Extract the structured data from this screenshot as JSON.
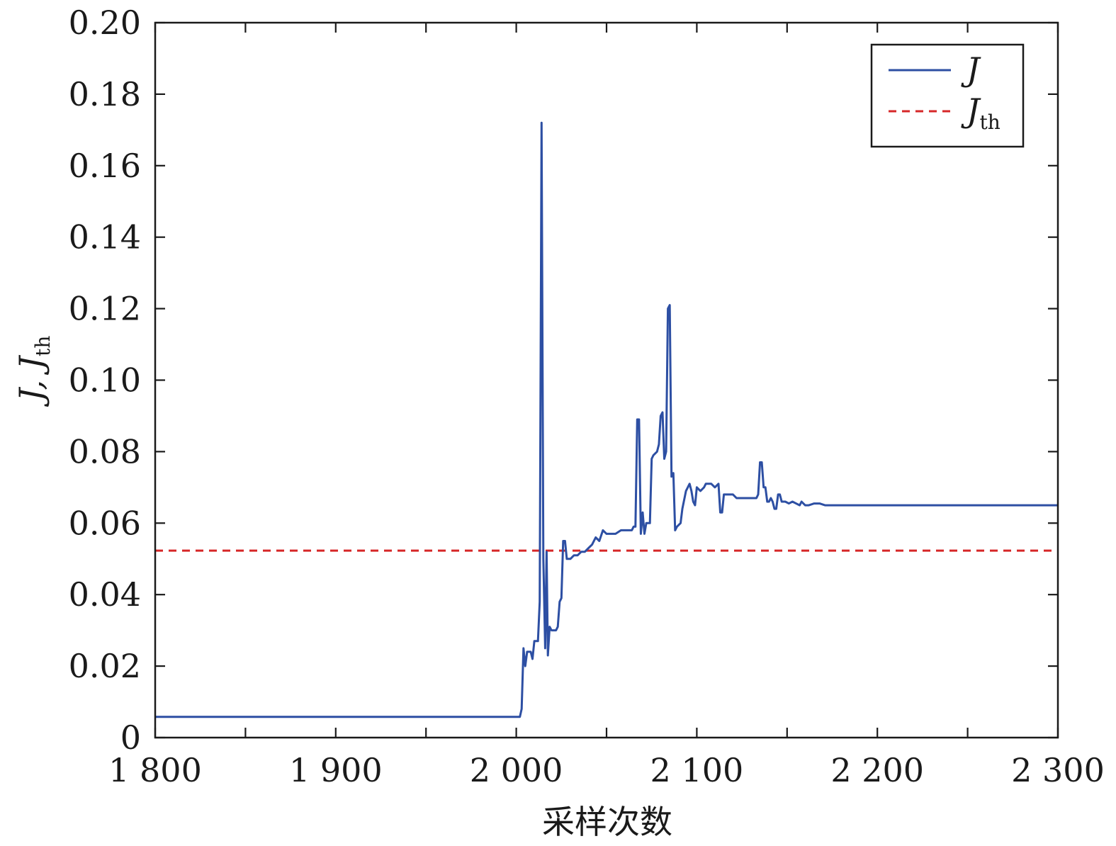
{
  "chart_data": {
    "type": "line",
    "title": "",
    "xlabel": "采样次数",
    "ylabel": {
      "main": "J, J",
      "sub": "th"
    },
    "xlim": [
      1800,
      2300
    ],
    "ylim": [
      0,
      0.2
    ],
    "x_ticks": [
      1800,
      1900,
      2000,
      2100,
      2200,
      2300
    ],
    "x_tick_labels": [
      "1 800",
      "1 900",
      "2 000",
      "2 100",
      "2 200",
      "2 300"
    ],
    "x_minor_ticks": [
      1850,
      1950,
      2050,
      2150,
      2250
    ],
    "y_ticks": [
      0,
      0.02,
      0.04,
      0.06,
      0.08,
      0.1,
      0.12,
      0.14,
      0.16,
      0.18,
      0.2
    ],
    "y_tick_labels": [
      "0",
      "0.02",
      "0.04",
      "0.06",
      "0.08",
      "0.10",
      "0.12",
      "0.14",
      "0.16",
      "0.18",
      "0.20"
    ],
    "grid": false,
    "legend": {
      "position": "top-right"
    },
    "series": [
      {
        "name": "J",
        "sub": "",
        "style": "solid",
        "color": "#2d4fa3",
        "points": [
          [
            1800,
            0.0058
          ],
          [
            2002,
            0.0058
          ],
          [
            2003,
            0.008
          ],
          [
            2004,
            0.025
          ],
          [
            2005,
            0.02
          ],
          [
            2006,
            0.024
          ],
          [
            2008,
            0.024
          ],
          [
            2009,
            0.022
          ],
          [
            2010,
            0.027
          ],
          [
            2012,
            0.027
          ],
          [
            2013,
            0.038
          ],
          [
            2014,
            0.172
          ],
          [
            2015,
            0.05
          ],
          [
            2016,
            0.025
          ],
          [
            2016.8,
            0.052
          ],
          [
            2017.5,
            0.023
          ],
          [
            2018.5,
            0.031
          ],
          [
            2019.5,
            0.03
          ],
          [
            2020.5,
            0.03
          ],
          [
            2022,
            0.03
          ],
          [
            2023,
            0.031
          ],
          [
            2024,
            0.038
          ],
          [
            2025,
            0.039
          ],
          [
            2026,
            0.055
          ],
          [
            2027,
            0.055
          ],
          [
            2028,
            0.05
          ],
          [
            2030,
            0.05
          ],
          [
            2032,
            0.051
          ],
          [
            2034,
            0.051
          ],
          [
            2036,
            0.052
          ],
          [
            2038,
            0.052
          ],
          [
            2040,
            0.053
          ],
          [
            2042,
            0.054
          ],
          [
            2044,
            0.056
          ],
          [
            2046,
            0.055
          ],
          [
            2048,
            0.058
          ],
          [
            2050,
            0.057
          ],
          [
            2055,
            0.057
          ],
          [
            2058,
            0.058
          ],
          [
            2062,
            0.058
          ],
          [
            2064,
            0.058
          ],
          [
            2065,
            0.059
          ],
          [
            2066,
            0.059
          ],
          [
            2067,
            0.089
          ],
          [
            2068,
            0.089
          ],
          [
            2069,
            0.057
          ],
          [
            2070,
            0.063
          ],
          [
            2071,
            0.057
          ],
          [
            2072,
            0.06
          ],
          [
            2074,
            0.06
          ],
          [
            2075,
            0.078
          ],
          [
            2076,
            0.079
          ],
          [
            2078,
            0.08
          ],
          [
            2079,
            0.082
          ],
          [
            2080,
            0.09
          ],
          [
            2081,
            0.091
          ],
          [
            2082,
            0.078
          ],
          [
            2083,
            0.08
          ],
          [
            2084,
            0.12
          ],
          [
            2085,
            0.121
          ],
          [
            2086,
            0.073
          ],
          [
            2087,
            0.074
          ],
          [
            2088,
            0.058
          ],
          [
            2089,
            0.059
          ],
          [
            2091,
            0.06
          ],
          [
            2092,
            0.064
          ],
          [
            2094,
            0.069
          ],
          [
            2095,
            0.07
          ],
          [
            2096,
            0.071
          ],
          [
            2097,
            0.069
          ],
          [
            2098,
            0.066
          ],
          [
            2099,
            0.065
          ],
          [
            2100,
            0.07
          ],
          [
            2102,
            0.069
          ],
          [
            2104,
            0.07
          ],
          [
            2105,
            0.071
          ],
          [
            2108,
            0.071
          ],
          [
            2110,
            0.07
          ],
          [
            2112,
            0.071
          ],
          [
            2113,
            0.063
          ],
          [
            2114,
            0.063
          ],
          [
            2115,
            0.068
          ],
          [
            2118,
            0.068
          ],
          [
            2120,
            0.068
          ],
          [
            2122,
            0.067
          ],
          [
            2125,
            0.067
          ],
          [
            2130,
            0.067
          ],
          [
            2133,
            0.067
          ],
          [
            2134,
            0.068
          ],
          [
            2135,
            0.077
          ],
          [
            2136,
            0.077
          ],
          [
            2137,
            0.07
          ],
          [
            2138,
            0.07
          ],
          [
            2139,
            0.066
          ],
          [
            2140,
            0.066
          ],
          [
            2141,
            0.067
          ],
          [
            2142,
            0.066
          ],
          [
            2143,
            0.064
          ],
          [
            2144,
            0.064
          ],
          [
            2145,
            0.068
          ],
          [
            2146,
            0.068
          ],
          [
            2147,
            0.066
          ],
          [
            2149,
            0.066
          ],
          [
            2151,
            0.0655
          ],
          [
            2153,
            0.066
          ],
          [
            2155,
            0.0655
          ],
          [
            2157,
            0.065
          ],
          [
            2158,
            0.066
          ],
          [
            2160,
            0.065
          ],
          [
            2162,
            0.065
          ],
          [
            2165,
            0.0655
          ],
          [
            2168,
            0.0655
          ],
          [
            2171,
            0.065
          ],
          [
            2175,
            0.065
          ],
          [
            2300,
            0.065
          ]
        ]
      },
      {
        "name": "J",
        "sub": "th",
        "style": "dashed",
        "color": "#d62728",
        "points": [
          [
            1800,
            0.0523
          ],
          [
            2300,
            0.0523
          ]
        ]
      }
    ]
  }
}
